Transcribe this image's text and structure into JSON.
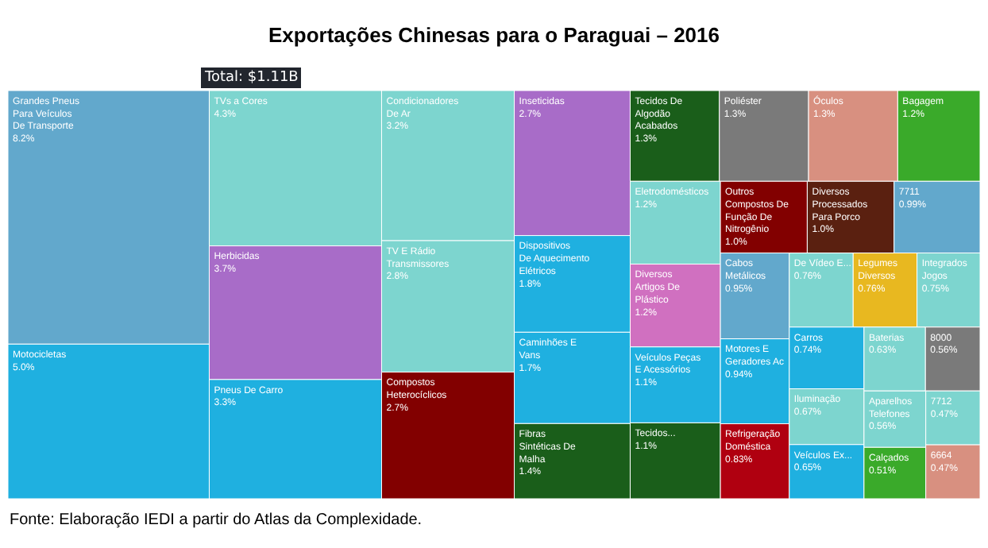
{
  "chart_data": {
    "type": "other",
    "title": "Exportações Chinesas para o Paraguai – 2016",
    "subtitle": "Total: $1.11B",
    "categories": [
      "Motocicletas",
      "Pneus De Carro",
      "Dispositivos De Aquecimento Elétricos",
      "Caminhões E Vans",
      "Veículos Peças E Acessórios",
      "Motores E Geradores Ac",
      "Carros",
      "Veículos Ex...",
      "Grandes Pneus Para Veículos De Transporte",
      "7711",
      "Cabos Metálicos",
      "Fibras Sintéticas De Malha",
      "Tecidos De Algodão Acabados",
      "Tecidos...",
      "Poliéster",
      "8000",
      "Bagagem",
      "Calçados",
      "TVs a Cores",
      "Condicionadores De Ar",
      "TV E Rádio Transmissores",
      "Eletrodomésticos",
      "De Vídeo E...",
      "Integrados Jogos",
      "Iluminação",
      "Baterias",
      "Aparelhos Telefones",
      "7712",
      "Compostos Heterocíclicos",
      "Outros Compostos De Função De Nitrogênio",
      "Herbicidas",
      "Inseticidas",
      "Óculos",
      "6664",
      "Refrigeração Doméstica",
      "Diversos Artigos De Plástico",
      "Diversos Processados Para Porco",
      "Legumes Diversos"
    ],
    "values": [
      5.0,
      3.3,
      1.8,
      1.7,
      1.1,
      0.94,
      0.74,
      0.65,
      8.2,
      0.99,
      0.95,
      1.4,
      1.3,
      1.1,
      1.3,
      0.56,
      1.2,
      0.51,
      4.3,
      3.2,
      2.8,
      1.2,
      0.76,
      0.75,
      0.67,
      0.63,
      0.56,
      0.47,
      2.7,
      1.0,
      3.7,
      2.7,
      1.3,
      0.47,
      0.83,
      1.2,
      1.0,
      0.76
    ],
    "value_labels": [
      "5.0%",
      "3.3%",
      "1.8%",
      "1.7%",
      "1.1%",
      "0.94%",
      "0.74%",
      "0.65%",
      "8.2%",
      "0.99%",
      "0.95%",
      "1.4%",
      "1.3%",
      "1.1%",
      "1.3%",
      "0.56%",
      "1.2%",
      "0.51%",
      "4.3%",
      "3.2%",
      "2.8%",
      "1.2%",
      "0.76%",
      "0.75%",
      "0.67%",
      "0.63%",
      "0.56%",
      "0.47%",
      "2.7%",
      "1.0%",
      "3.7%",
      "2.7%",
      "1.3%",
      "0.47%",
      "0.83%",
      "1.2%",
      "1.0%",
      "0.76%"
    ],
    "colors": [
      "#1fb0e0",
      "#1fb0e0",
      "#1fb0e0",
      "#1fb0e0",
      "#1fb0e0",
      "#1fb0e0",
      "#1fb0e0",
      "#1fb0e0",
      "#62a8cc",
      "#62a8cc",
      "#62a8cc",
      "#1a5e1a",
      "#1a5e1a",
      "#1a5e1a",
      "#7a7a7a",
      "#7a7a7a",
      "#3aaa2a",
      "#3aaa2a",
      "#7dd5cf",
      "#7dd5cf",
      "#7dd5cf",
      "#7dd5cf",
      "#7dd5cf",
      "#7dd5cf",
      "#7dd5cf",
      "#7dd5cf",
      "#7dd5cf",
      "#7dd5cf",
      "#820000",
      "#820000",
      "#a86cc8",
      "#a86cc8",
      "#d89080",
      "#d89080",
      "#b00010",
      "#d070c0",
      "#5a2010",
      "#e8b820"
    ],
    "annotations": [
      "Fonte: Elaboração IEDI a partir do Atlas da Complexidade."
    ]
  }
}
